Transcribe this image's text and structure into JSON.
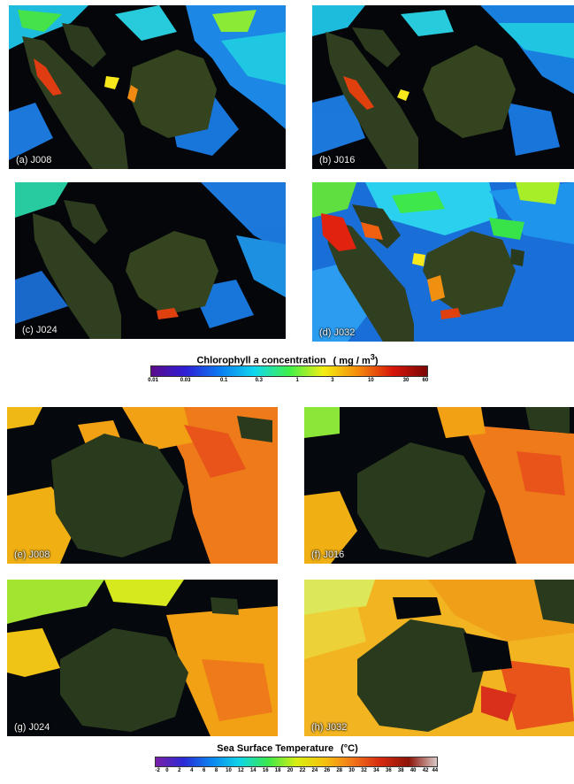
{
  "chl_panels": [
    {
      "id": "a",
      "label": "(a) J008"
    },
    {
      "id": "b",
      "label": "(b) J016"
    },
    {
      "id": "c",
      "label": "(c) J024"
    },
    {
      "id": "d",
      "label": "(d) J032"
    }
  ],
  "sst_panels": [
    {
      "id": "e",
      "label": "(e) J008"
    },
    {
      "id": "f",
      "label": "(f) J016"
    },
    {
      "id": "g",
      "label": "(g) J024"
    },
    {
      "id": "h",
      "label": "(h) J032"
    }
  ],
  "chl_colorbar": {
    "title_prefix": "Chlorophyll ",
    "title_italic": "a",
    "title_suffix": " concentration",
    "unit_prefix": "( mg / m",
    "unit_sup": "3",
    "unit_suffix": ")",
    "scale": "log",
    "ticks": [
      "0.01",
      "0.03",
      "0.1",
      "0.3",
      "1",
      "3",
      "10",
      "30",
      "60"
    ],
    "tick_values": [
      0.01,
      0.03,
      0.1,
      0.3,
      1,
      3,
      10,
      30,
      60
    ],
    "range": [
      0.01,
      60
    ],
    "colors": [
      "#5b0a8a",
      "#2e1fd6",
      "#0a7cf2",
      "#11d8ee",
      "#3ff04a",
      "#f4ee12",
      "#f58a0c",
      "#d8160a",
      "#7a0606"
    ]
  },
  "sst_colorbar": {
    "title": "Sea Surface Temperature",
    "unit": "(°C)",
    "scale": "linear",
    "ticks": [
      "-2",
      "0",
      "2",
      "4",
      "6",
      "8",
      "10",
      "12",
      "14",
      "16",
      "18",
      "20",
      "22",
      "24",
      "26",
      "28",
      "30",
      "32",
      "34",
      "36",
      "38",
      "40",
      "42",
      "44"
    ],
    "tick_values": [
      -2,
      0,
      2,
      4,
      6,
      8,
      10,
      12,
      14,
      16,
      18,
      20,
      22,
      24,
      26,
      28,
      30,
      32,
      34,
      36,
      38,
      40,
      42,
      44
    ],
    "range": [
      -2,
      44
    ],
    "colors": [
      "#7a1fa8",
      "#2a2ad6",
      "#0a86f0",
      "#10d6e6",
      "#3ae84a",
      "#d8ee12",
      "#f6c20e",
      "#f2761a",
      "#d62a10",
      "#8c1408",
      "#d9c8c6"
    ]
  },
  "colors": {
    "ocean_dark": "#04060a",
    "land": "#2a3a1c",
    "land_light": "#3c4a26",
    "cloud_free_dark": "#05080c"
  }
}
